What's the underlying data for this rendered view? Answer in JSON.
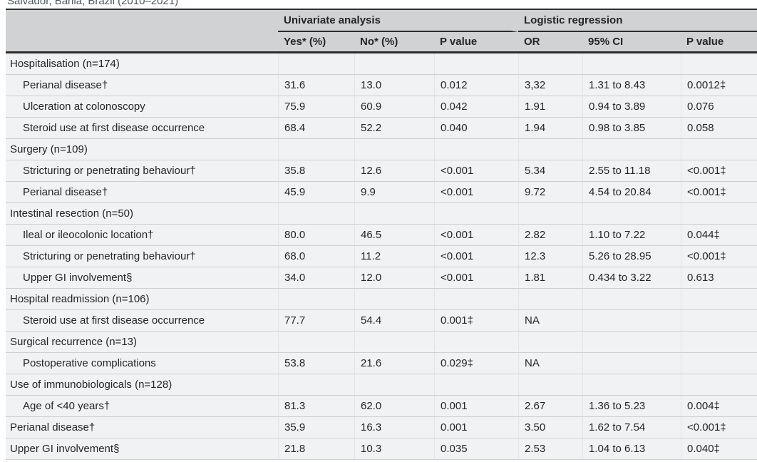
{
  "caption": {
    "text": "Salvador, Bahia, Brazil (2010–2021)"
  },
  "colors": {
    "header_bg": "#d1d2d4",
    "row_bg": "#f1f2f3",
    "dark_border": "#2d2d2d",
    "row_separator": "#cdd0d2",
    "column_divider": "#e2e4e6",
    "text": "#232628",
    "caption_text": "#4d565c"
  },
  "table": {
    "group_headers": [
      {
        "label": "Univariate analysis"
      },
      {
        "label": "Logistic regression"
      }
    ],
    "columns": [
      "Yes* (%)",
      "No* (%)",
      "P value",
      "OR",
      "95% CI",
      "P value"
    ],
    "sections": [
      {
        "title": "Hospitalisation (n=174)",
        "rows": [
          {
            "label": "Perianal disease†",
            "indent": true,
            "yes": "31.6",
            "no": "13.0",
            "p": "0.012",
            "or": "3,32",
            "ci": "1.31 to 8.43",
            "p2": "0.0012‡"
          },
          {
            "label": "Ulceration at colonoscopy",
            "indent": true,
            "yes": "75.9",
            "no": "60.9",
            "p": "0.042",
            "or": "1.91",
            "ci": "0.94 to 3.89",
            "p2": "0.076"
          },
          {
            "label": "Steroid use at first disease occurrence",
            "indent": true,
            "yes": "68.4",
            "no": "52.2",
            "p": "0.040",
            "or": "1.94",
            "ci": "0.98 to 3.85",
            "p2": "0.058"
          }
        ]
      },
      {
        "title": "Surgery (n=109)",
        "rows": [
          {
            "label": "Stricturing or penetrating behaviour†",
            "indent": true,
            "yes": "35.8",
            "no": "12.6",
            "p": "<0.001",
            "or": "5.34",
            "ci": "2.55 to 11.18",
            "p2": "<0.001‡"
          },
          {
            "label": "Perianal disease†",
            "indent": true,
            "yes": "45.9",
            "no": "9.9",
            "p": "<0.001",
            "or": "9.72",
            "ci": "4.54 to 20.84",
            "p2": "<0.001‡"
          }
        ]
      },
      {
        "title": "Intestinal resection (n=50)",
        "rows": [
          {
            "label": "Ileal or ileocolonic location†",
            "indent": true,
            "yes": "80.0",
            "no": "46.5",
            "p": "<0.001",
            "or": "2.82",
            "ci": "1.10 to 7.22",
            "p2": "0.044‡"
          },
          {
            "label": "Stricturing or penetrating behaviour†",
            "indent": true,
            "yes": "68.0",
            "no": "11.2",
            "p": "<0.001",
            "or": "12.3",
            "ci": "5.26 to 28.95",
            "p2": "<0.001‡"
          },
          {
            "label": "Upper GI involvement§",
            "indent": true,
            "yes": "34.0",
            "no": "12.0",
            "p": "<0.001",
            "or": "1.81",
            "ci": "0.434 to 3.22",
            "p2": "0.613"
          }
        ]
      },
      {
        "title": "Hospital readmission (n=106)",
        "rows": [
          {
            "label": "Steroid use at first disease occurrence",
            "indent": true,
            "yes": "77.7",
            "no": "54.4",
            "p": "0.001‡",
            "or": "NA",
            "ci": "",
            "p2": ""
          }
        ]
      },
      {
        "title": "Surgical recurrence (n=13)",
        "rows": [
          {
            "label": "Postoperative complications",
            "indent": true,
            "yes": "53.8",
            "no": "21.6",
            "p": "0.029‡",
            "or": "NA",
            "ci": "",
            "p2": ""
          }
        ]
      },
      {
        "title": "Use of immunobiologicals (n=128)",
        "rows": [
          {
            "label": "Age of <40 years†",
            "indent": true,
            "yes": "81.3",
            "no": "62.0",
            "p": "0.001",
            "or": "2.67",
            "ci": "1.36 to 5.23",
            "p2": "0.004‡"
          },
          {
            "label": "Perianal disease†",
            "indent": false,
            "yes": "35.9",
            "no": "16.3",
            "p": "0.001",
            "or": "3.50",
            "ci": "1.62 to 7.54",
            "p2": "<0.001‡"
          },
          {
            "label": "Upper GI involvement§",
            "indent": false,
            "yes": "21.8",
            "no": "10.3",
            "p": "0.035",
            "or": "2.53",
            "ci": "1.04 to 6.13",
            "p2": "0.040‡"
          }
        ]
      }
    ]
  }
}
